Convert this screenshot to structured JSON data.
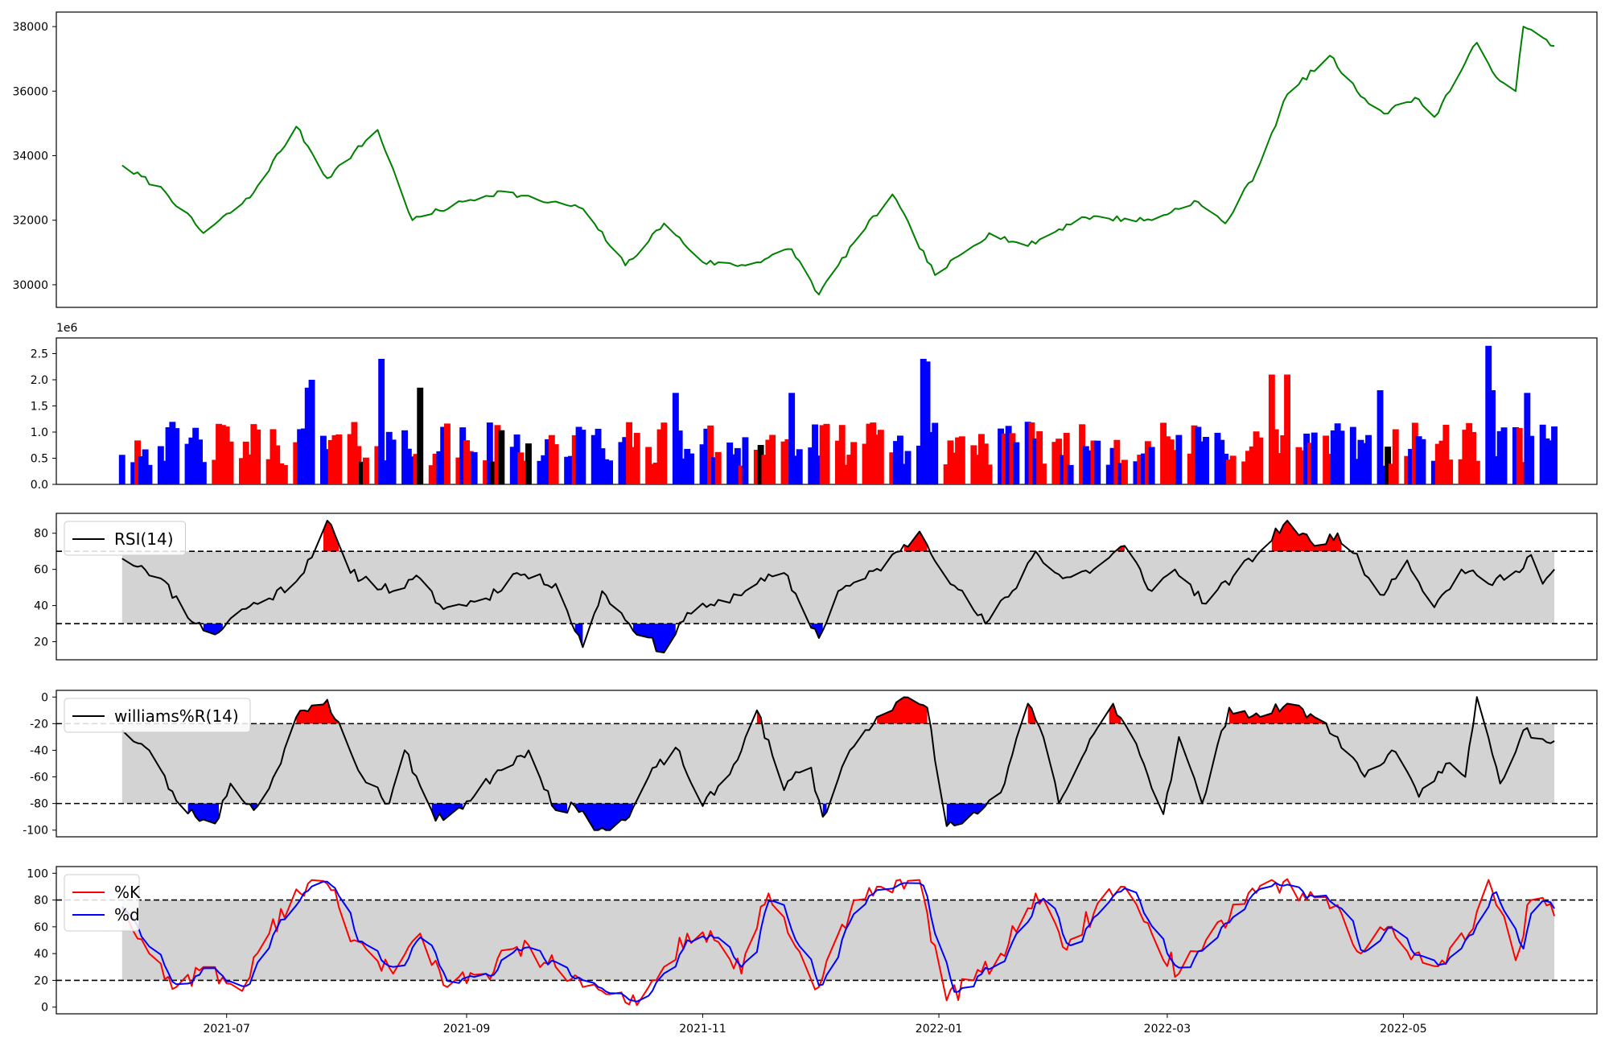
{
  "colors": {
    "price": "#008000",
    "vol_up": "#ff0000",
    "vol_down": "#0000ff",
    "vol_flat": "#000000",
    "band": "#d3d3d3",
    "overbought": "#ff0000",
    "oversold": "#0000ff",
    "indicator": "#000000",
    "k_line": "#ff0000",
    "d_line": "#0000ff"
  },
  "chart_data": [
    {
      "type": "line",
      "name": "price",
      "x_range": [
        "2021-05-18",
        "2022-06-20"
      ],
      "ylim": [
        29300,
        38450
      ],
      "yticks": [
        30000,
        32000,
        34000,
        36000,
        38000
      ],
      "grid": false,
      "start": "2021-06-04",
      "end": "2022-06-09",
      "anchors": [
        [
          "2021-06-04",
          33700
        ],
        [
          "2021-06-15",
          32900
        ],
        [
          "2021-06-25",
          31600
        ],
        [
          "2021-07-07",
          32700
        ],
        [
          "2021-07-19",
          34900
        ],
        [
          "2021-07-27",
          33300
        ],
        [
          "2021-08-09",
          34800
        ],
        [
          "2021-08-18",
          32000
        ],
        [
          "2021-09-01",
          32600
        ],
        [
          "2021-09-10",
          32900
        ],
        [
          "2021-09-20",
          32600
        ],
        [
          "2021-09-30",
          32400
        ],
        [
          "2021-10-04",
          31900
        ],
        [
          "2021-10-12",
          30600
        ],
        [
          "2021-10-22",
          31900
        ],
        [
          "2021-11-01",
          30700
        ],
        [
          "2021-11-12",
          30600
        ],
        [
          "2021-11-24",
          31100
        ],
        [
          "2021-12-01",
          29700
        ],
        [
          "2021-12-10",
          31300
        ],
        [
          "2021-12-20",
          32800
        ],
        [
          "2021-12-31",
          30300
        ],
        [
          "2022-01-14",
          31600
        ],
        [
          "2022-01-24",
          31200
        ],
        [
          "2022-02-07",
          32100
        ],
        [
          "2022-02-25",
          32000
        ],
        [
          "2022-03-08",
          32600
        ],
        [
          "2022-03-16",
          31900
        ],
        [
          "2022-03-24",
          33500
        ],
        [
          "2022-04-01",
          35900
        ],
        [
          "2022-04-12",
          37100
        ],
        [
          "2022-04-19",
          36000
        ],
        [
          "2022-04-26",
          35300
        ],
        [
          "2022-05-04",
          35800
        ],
        [
          "2022-05-09",
          35200
        ],
        [
          "2022-05-20",
          37500
        ],
        [
          "2022-05-24",
          36600
        ],
        [
          "2022-05-30",
          36000
        ],
        [
          "2022-06-01",
          38000
        ],
        [
          "2022-06-09",
          37400
        ]
      ]
    },
    {
      "type": "bar",
      "name": "volume",
      "x_range": [
        "2021-05-18",
        "2022-06-20"
      ],
      "ylim": [
        0,
        2800000
      ],
      "yticks": [
        0,
        500000,
        1000000,
        1500000,
        2000000,
        2500000
      ],
      "ytick_labels": [
        "0.0",
        "0.5",
        "1.0",
        "1.5",
        "2.0",
        "2.5"
      ],
      "offset_label": "1e6",
      "grid": false,
      "start": "2021-06-04",
      "end": "2022-06-09",
      "spikes": [
        [
          "2021-08-10",
          2400000
        ],
        [
          "2021-12-28",
          2400000
        ],
        [
          "2021-12-29",
          2350000
        ],
        [
          "2022-05-23",
          2650000
        ],
        [
          "2022-05-24",
          1800000
        ],
        [
          "2022-03-28",
          2100000
        ],
        [
          "2022-04-01",
          2100000
        ],
        [
          "2021-07-23",
          2000000
        ],
        [
          "2021-07-22",
          1850000
        ],
        [
          "2021-08-20",
          1850000
        ],
        [
          "2021-11-24",
          1750000
        ],
        [
          "2021-10-25",
          1750000
        ],
        [
          "2022-04-25",
          1800000
        ],
        [
          "2022-06-02",
          1750000
        ]
      ]
    },
    {
      "type": "line",
      "name": "rsi",
      "legend": [
        "RSI(14)"
      ],
      "legend_position": "upper-left",
      "x_range": [
        "2021-05-18",
        "2022-06-20"
      ],
      "ylim": [
        10,
        91
      ],
      "yticks": [
        20,
        40,
        60,
        80
      ],
      "band": [
        30,
        70
      ],
      "grid": false,
      "start": "2021-06-04",
      "end": "2022-06-09",
      "anchors": [
        [
          "2021-06-04",
          66
        ],
        [
          "2021-06-09",
          62
        ],
        [
          "2021-06-14",
          55
        ],
        [
          "2021-06-23",
          30
        ],
        [
          "2021-06-28",
          24
        ],
        [
          "2021-07-05",
          38
        ],
        [
          "2021-07-12",
          44
        ],
        [
          "2021-07-20",
          56
        ],
        [
          "2021-07-27",
          87
        ],
        [
          "2021-08-02",
          58
        ],
        [
          "2021-08-13",
          48
        ],
        [
          "2021-08-20",
          55
        ],
        [
          "2021-08-26",
          38
        ],
        [
          "2021-09-06",
          44
        ],
        [
          "2021-09-14",
          58
        ],
        [
          "2021-09-24",
          52
        ],
        [
          "2021-10-01",
          17
        ],
        [
          "2021-10-06",
          48
        ],
        [
          "2021-10-13",
          30
        ],
        [
          "2021-10-22",
          14
        ],
        [
          "2021-10-28",
          36
        ],
        [
          "2021-11-04",
          40
        ],
        [
          "2021-11-15",
          52
        ],
        [
          "2021-11-22",
          58
        ],
        [
          "2021-12-01",
          22
        ],
        [
          "2021-12-06",
          48
        ],
        [
          "2021-12-13",
          55
        ],
        [
          "2021-12-22",
          70
        ],
        [
          "2021-12-27",
          81
        ],
        [
          "2022-01-05",
          51
        ],
        [
          "2022-01-13",
          30
        ],
        [
          "2022-01-20",
          48
        ],
        [
          "2022-01-26",
          70
        ],
        [
          "2022-02-02",
          55
        ],
        [
          "2022-02-10",
          60
        ],
        [
          "2022-02-18",
          73
        ],
        [
          "2022-02-25",
          48
        ],
        [
          "2022-03-03",
          60
        ],
        [
          "2022-03-11",
          41
        ],
        [
          "2022-03-18",
          56
        ],
        [
          "2022-03-25",
          70
        ],
        [
          "2022-04-01",
          87
        ],
        [
          "2022-04-08",
          73
        ],
        [
          "2022-04-14",
          80
        ],
        [
          "2022-04-18",
          69
        ],
        [
          "2022-04-25",
          46
        ],
        [
          "2022-05-02",
          65
        ],
        [
          "2022-05-09",
          39
        ],
        [
          "2022-05-16",
          60
        ],
        [
          "2022-05-23",
          52
        ],
        [
          "2022-05-30",
          59
        ],
        [
          "2022-06-03",
          68
        ],
        [
          "2022-06-06",
          52
        ],
        [
          "2022-06-09",
          60
        ]
      ]
    },
    {
      "type": "line",
      "name": "williams",
      "legend": [
        "williams%R(14)"
      ],
      "legend_position": "upper-left",
      "x_range": [
        "2021-05-18",
        "2022-06-20"
      ],
      "ylim": [
        -105,
        5
      ],
      "yticks": [
        -100,
        -80,
        -60,
        -40,
        -20,
        0
      ],
      "band": [
        -80,
        -20
      ],
      "grid": false,
      "start": "2021-06-04",
      "end": "2022-06-09",
      "anchors": [
        [
          "2021-06-04",
          -25
        ],
        [
          "2021-06-11",
          -40
        ],
        [
          "2021-06-18",
          -78
        ],
        [
          "2021-06-23",
          -90
        ],
        [
          "2021-06-28",
          -95
        ],
        [
          "2021-07-02",
          -65
        ],
        [
          "2021-07-08",
          -85
        ],
        [
          "2021-07-15",
          -50
        ],
        [
          "2021-07-19",
          -15
        ],
        [
          "2021-07-27",
          -2
        ],
        [
          "2021-08-04",
          -55
        ],
        [
          "2021-08-12",
          -80
        ],
        [
          "2021-08-16",
          -40
        ],
        [
          "2021-08-24",
          -93
        ],
        [
          "2021-09-02",
          -78
        ],
        [
          "2021-09-09",
          -55
        ],
        [
          "2021-09-17",
          -40
        ],
        [
          "2021-09-24",
          -85
        ],
        [
          "2021-09-29",
          -82
        ],
        [
          "2021-10-03",
          -97
        ],
        [
          "2021-10-08",
          -100
        ],
        [
          "2021-10-13",
          -90
        ],
        [
          "2021-10-18",
          -60
        ],
        [
          "2021-10-25",
          -38
        ],
        [
          "2021-11-01",
          -82
        ],
        [
          "2021-11-08",
          -58
        ],
        [
          "2021-11-15",
          -10
        ],
        [
          "2021-11-22",
          -70
        ],
        [
          "2021-11-28",
          -45
        ],
        [
          "2021-12-02",
          -90
        ],
        [
          "2021-12-09",
          -40
        ],
        [
          "2021-12-16",
          -15
        ],
        [
          "2021-12-22",
          -2
        ],
        [
          "2021-12-29",
          -8
        ],
        [
          "2022-01-03",
          -97
        ],
        [
          "2022-01-07",
          -95
        ],
        [
          "2022-01-12",
          -85
        ],
        [
          "2022-01-18",
          -65
        ],
        [
          "2022-01-24",
          -5
        ],
        [
          "2022-01-28",
          -30
        ],
        [
          "2022-02-01",
          -80
        ],
        [
          "2022-02-08",
          -40
        ],
        [
          "2022-02-15",
          -5
        ],
        [
          "2022-02-21",
          -35
        ],
        [
          "2022-02-28",
          -88
        ],
        [
          "2022-03-04",
          -30
        ],
        [
          "2022-03-10",
          -80
        ],
        [
          "2022-03-17",
          -8
        ],
        [
          "2022-03-25",
          -15
        ],
        [
          "2022-04-01",
          -5
        ],
        [
          "2022-04-08",
          -15
        ],
        [
          "2022-04-14",
          -30
        ],
        [
          "2022-04-21",
          -60
        ],
        [
          "2022-04-28",
          -40
        ],
        [
          "2022-05-05",
          -75
        ],
        [
          "2022-05-12",
          -50
        ],
        [
          "2022-05-17",
          -60
        ],
        [
          "2022-05-20",
          0
        ],
        [
          "2022-05-26",
          -65
        ],
        [
          "2022-06-01",
          -25
        ],
        [
          "2022-06-09",
          -33
        ]
      ]
    },
    {
      "type": "line",
      "name": "stochastic",
      "legend": [
        "%K",
        "%d"
      ],
      "legend_position": "upper-left",
      "x_range": [
        "2021-05-18",
        "2022-06-20"
      ],
      "ylim": [
        -5,
        105
      ],
      "yticks": [
        0,
        20,
        40,
        60,
        80,
        100
      ],
      "band": [
        20,
        80
      ],
      "grid": false,
      "start": "2021-06-04",
      "end": "2022-06-09",
      "xticks": [
        "2021-07-01",
        "2021-09-01",
        "2021-11-01",
        "2022-01-01",
        "2022-03-01",
        "2022-05-01"
      ],
      "xtick_labels": [
        "2021-07",
        "2021-09",
        "2021-11",
        "2022-01",
        "2022-03",
        "2022-05"
      ],
      "anchors": [
        [
          "2021-06-04",
          75
        ],
        [
          "2021-06-11",
          40
        ],
        [
          "2021-06-18",
          15
        ],
        [
          "2021-06-25",
          30
        ],
        [
          "2021-07-05",
          12
        ],
        [
          "2021-07-12",
          55
        ],
        [
          "2021-07-19",
          88
        ],
        [
          "2021-07-27",
          92
        ],
        [
          "2021-08-03",
          50
        ],
        [
          "2021-08-13",
          25
        ],
        [
          "2021-08-20",
          55
        ],
        [
          "2021-08-27",
          15
        ],
        [
          "2021-09-06",
          25
        ],
        [
          "2021-09-14",
          45
        ],
        [
          "2021-09-24",
          30
        ],
        [
          "2021-10-01",
          15
        ],
        [
          "2021-10-06",
          12
        ],
        [
          "2021-10-13",
          2
        ],
        [
          "2021-10-20",
          20
        ],
        [
          "2021-10-28",
          55
        ],
        [
          "2021-11-04",
          50
        ],
        [
          "2021-11-11",
          25
        ],
        [
          "2021-11-18",
          85
        ],
        [
          "2021-11-25",
          45
        ],
        [
          "2021-12-01",
          15
        ],
        [
          "2021-12-09",
          70
        ],
        [
          "2021-12-17",
          90
        ],
        [
          "2021-12-27",
          95
        ],
        [
          "2022-01-03",
          5
        ],
        [
          "2022-01-10",
          20
        ],
        [
          "2022-01-17",
          40
        ],
        [
          "2022-01-26",
          85
        ],
        [
          "2022-02-02",
          45
        ],
        [
          "2022-02-10",
          70
        ],
        [
          "2022-02-17",
          90
        ],
        [
          "2022-02-25",
          55
        ],
        [
          "2022-03-04",
          25
        ],
        [
          "2022-03-11",
          50
        ],
        [
          "2022-03-20",
          80
        ],
        [
          "2022-03-28",
          95
        ],
        [
          "2022-04-05",
          85
        ],
        [
          "2022-04-13",
          75
        ],
        [
          "2022-04-20",
          40
        ],
        [
          "2022-04-27",
          60
        ],
        [
          "2022-05-04",
          40
        ],
        [
          "2022-05-11",
          35
        ],
        [
          "2022-05-18",
          55
        ],
        [
          "2022-05-23",
          95
        ],
        [
          "2022-05-30",
          35
        ],
        [
          "2022-06-03",
          80
        ],
        [
          "2022-06-09",
          68
        ]
      ]
    }
  ]
}
